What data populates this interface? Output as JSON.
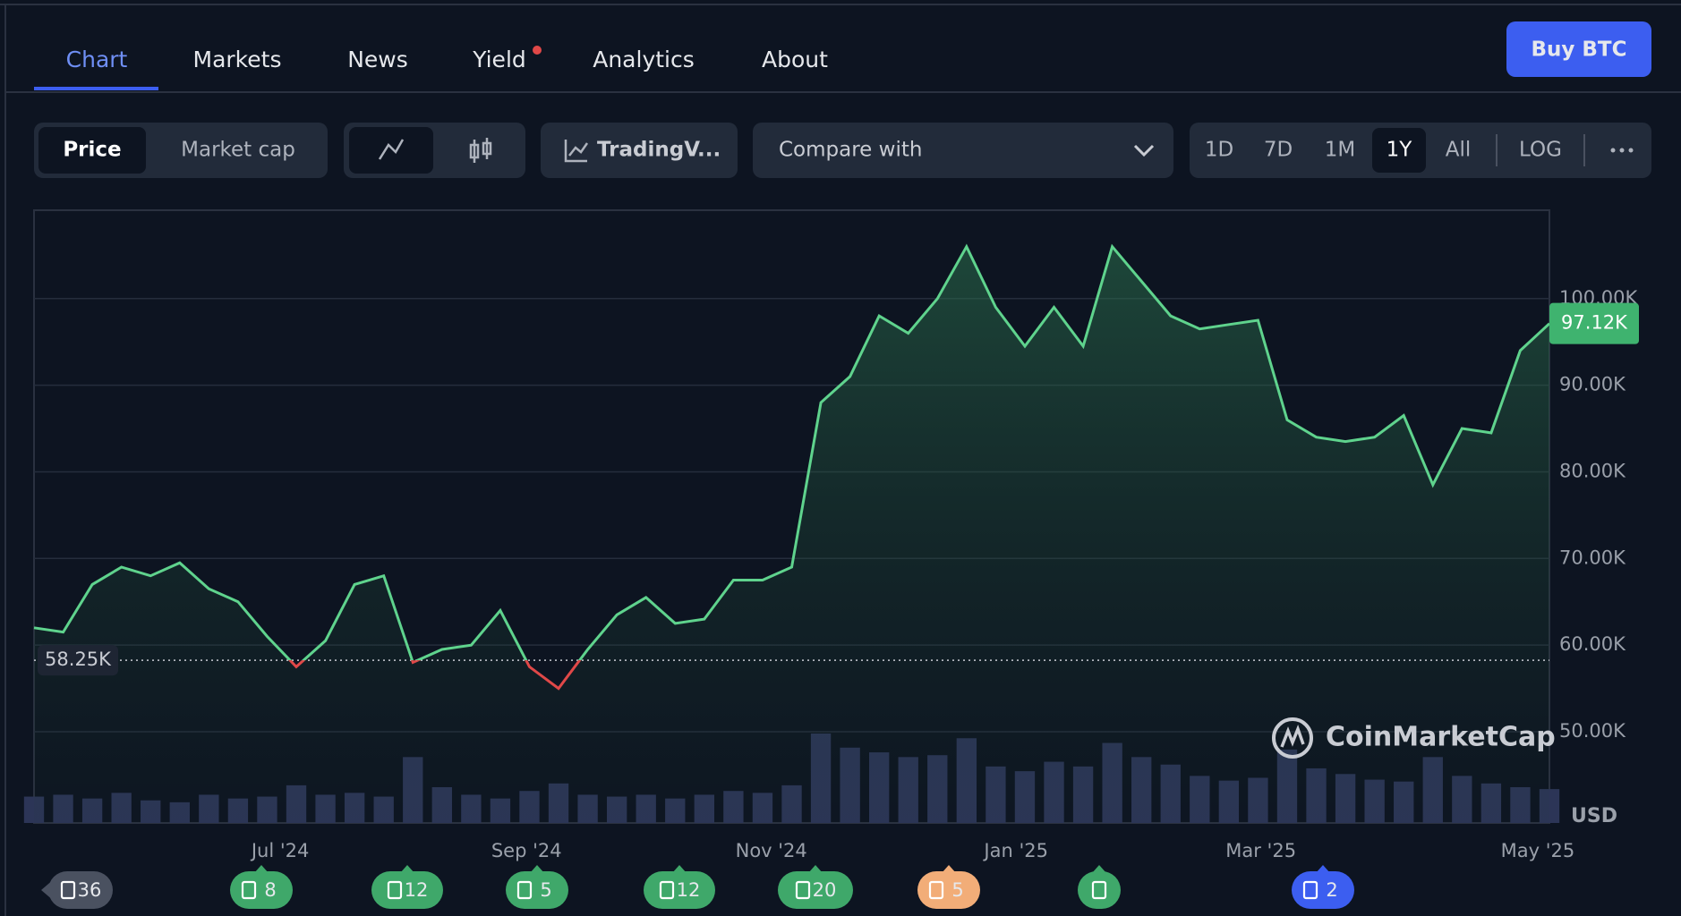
{
  "nav": {
    "tabs": [
      "Chart",
      "Markets",
      "News",
      "Yield",
      "Analytics",
      "About"
    ],
    "active_tab": 0,
    "button": "Buy BTC"
  },
  "toolbar": {
    "view": [
      "Price",
      "Market cap"
    ],
    "tradingview": "TradingV...",
    "compare": "Compare with",
    "ranges": [
      "1D",
      "7D",
      "1M",
      "1Y",
      "All"
    ],
    "active_range": 3,
    "log": "LOG"
  },
  "chart_data": {
    "type": "line",
    "color": "#5fd38d",
    "below_color": "#e04848",
    "values": [
      62000,
      61500,
      67000,
      69000,
      68000,
      69500,
      66500,
      65000,
      61000,
      57500,
      60500,
      67000,
      68000,
      58000,
      59500,
      60000,
      64000,
      57500,
      55000,
      59500,
      63500,
      65500,
      62500,
      63000,
      67500,
      67500,
      69000,
      88000,
      91000,
      98000,
      96000,
      100000,
      106000,
      99000,
      94500,
      99000,
      94500,
      106000,
      102000,
      98000,
      96500,
      97000,
      97500,
      86000,
      84000,
      83500,
      84000,
      86500,
      78500,
      85000,
      84500,
      94000,
      97120
    ],
    "volume": [
      28,
      30,
      26,
      32,
      24,
      22,
      30,
      26,
      28,
      40,
      30,
      32,
      28,
      70,
      38,
      30,
      26,
      34,
      42,
      30,
      28,
      30,
      26,
      30,
      34,
      32,
      40,
      95,
      80,
      75,
      70,
      72,
      90,
      60,
      55,
      65,
      60,
      85,
      70,
      62,
      50,
      45,
      48,
      78,
      58,
      52,
      46,
      44,
      70,
      50,
      42,
      38,
      36
    ],
    "ylim": [
      50000,
      110200
    ],
    "yticks": [
      {
        "value": 50000,
        "label": "50.00K"
      },
      {
        "value": 60000,
        "label": "60.00K"
      },
      {
        "value": 70000,
        "label": "70.00K"
      },
      {
        "value": 80000,
        "label": "80.00K"
      },
      {
        "value": 90000,
        "label": "90.00K"
      },
      {
        "value": 100000,
        "label": "100.00K"
      }
    ],
    "xlim": [
      0,
      52
    ],
    "xticks": [
      {
        "value": 8.45,
        "label": "Jul '24"
      },
      {
        "value": 16.9,
        "label": "Sep '24"
      },
      {
        "value": 25.3,
        "label": "Nov '24"
      },
      {
        "value": 33.7,
        "label": "Jan '25"
      },
      {
        "value": 42.1,
        "label": "Mar '25"
      },
      {
        "value": 51.6,
        "label": "May '25"
      }
    ],
    "baseline": {
      "value": 58250,
      "label": "58.25K"
    },
    "current": {
      "value": 97120,
      "label": "97.12K"
    },
    "currency": "USD",
    "watermark": "CoinMarketCap",
    "grid": true
  },
  "events": [
    {
      "label": "36",
      "color": "#4a5160"
    },
    {
      "label": "8",
      "color": "#3fa86a"
    },
    {
      "label": "12",
      "color": "#3fa86a"
    },
    {
      "label": "5",
      "color": "#3fa86a"
    },
    {
      "label": "12",
      "color": "#3fa86a"
    },
    {
      "label": "20",
      "color": "#3fa86a"
    },
    {
      "label": "5",
      "color": "#f2ad78"
    },
    {
      "color": "#3fa86a"
    },
    {
      "label": "2",
      "color": "#3c5ef0"
    }
  ]
}
